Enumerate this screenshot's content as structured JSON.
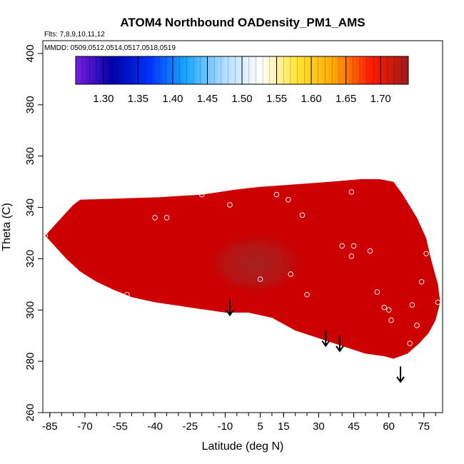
{
  "chart_data": {
    "type": "heatmap",
    "title": "ATOM4 Northbound OADensity_PM1_AMS",
    "flights_note": "Flts: 7,8,9,10,11,12",
    "dates_note": "MMDD: 0509,0512,0514,0517,0518,0519",
    "xlabel": "Latitude (deg N)",
    "ylabel": "Theta (C)",
    "xlim": [
      -88,
      83
    ],
    "ylim": [
      260,
      405
    ],
    "x_ticks": [
      "-85",
      "-70",
      "-55",
      "-40",
      "-25",
      "-10",
      "5",
      "15",
      "30",
      "45",
      "60",
      "75"
    ],
    "x_tick_values": [
      -85,
      -70,
      -55,
      -40,
      -25,
      -10,
      5,
      15,
      30,
      45,
      60,
      75
    ],
    "y_ticks": [
      "260",
      "280",
      "300",
      "320",
      "340",
      "360",
      "380",
      "400"
    ],
    "y_tick_values": [
      260,
      280,
      300,
      320,
      340,
      360,
      380,
      400
    ],
    "colorbar": {
      "min": 1.26,
      "max": 1.74,
      "tick_labels": [
        "1.30",
        "1.35",
        "1.40",
        "1.45",
        "1.50",
        "1.55",
        "1.60",
        "1.65",
        "1.70"
      ],
      "tick_values": [
        1.3,
        1.35,
        1.4,
        1.45,
        1.5,
        1.55,
        1.6,
        1.65,
        1.7
      ],
      "colors": [
        "#7a1fe0",
        "#0000aa",
        "#0033ff",
        "#1aa8ff",
        "#aedcff",
        "#ffffff",
        "#ffe433",
        "#ffa600",
        "#ff1a00",
        "#a01a1a"
      ]
    },
    "field": {
      "fill_color": "#cc0000",
      "core_color": "#a82020",
      "envelope_upper": [
        [
          -87,
          329
        ],
        [
          -82,
          334
        ],
        [
          -78,
          338
        ],
        [
          -75,
          341
        ],
        [
          -72,
          343
        ],
        [
          -38,
          344
        ],
        [
          -20,
          345
        ],
        [
          -5,
          347
        ],
        [
          5,
          348
        ],
        [
          20,
          349
        ],
        [
          35,
          350
        ],
        [
          48,
          351
        ],
        [
          56,
          351
        ],
        [
          62,
          350
        ],
        [
          66,
          345
        ],
        [
          72,
          336
        ],
        [
          76,
          328
        ],
        [
          78,
          320
        ],
        [
          81,
          310
        ],
        [
          82,
          303
        ],
        [
          80,
          296
        ],
        [
          77,
          291
        ],
        [
          73,
          287
        ],
        [
          68,
          283
        ],
        [
          62,
          281
        ]
      ],
      "envelope_lower": [
        [
          -87,
          329
        ],
        [
          -83,
          325
        ],
        [
          -78,
          320
        ],
        [
          -72,
          315
        ],
        [
          -65,
          311
        ],
        [
          -58,
          308
        ],
        [
          -50,
          305
        ],
        [
          -40,
          303
        ],
        [
          -25,
          301
        ],
        [
          -10,
          299
        ],
        [
          0,
          299
        ],
        [
          10,
          297
        ],
        [
          20,
          292
        ],
        [
          30,
          289
        ],
        [
          40,
          286
        ],
        [
          50,
          283
        ],
        [
          58,
          282
        ],
        [
          62,
          281
        ]
      ],
      "core_center": [
        3,
        318
      ],
      "core_radius": [
        22,
        13
      ]
    },
    "sample_points": [
      {
        "x": -75,
        "y": 343
      },
      {
        "x": -87,
        "y": 329
      },
      {
        "x": -40,
        "y": 336
      },
      {
        "x": -35,
        "y": 336
      },
      {
        "x": -20,
        "y": 345
      },
      {
        "x": -8,
        "y": 341
      },
      {
        "x": 12,
        "y": 345
      },
      {
        "x": 17,
        "y": 343
      },
      {
        "x": 23,
        "y": 337
      },
      {
        "x": 44,
        "y": 346
      },
      {
        "x": 40,
        "y": 325
      },
      {
        "x": 44,
        "y": 321
      },
      {
        "x": 45,
        "y": 325
      },
      {
        "x": 52,
        "y": 323
      },
      {
        "x": 5,
        "y": 312
      },
      {
        "x": 18,
        "y": 314
      },
      {
        "x": 25,
        "y": 306
      },
      {
        "x": -52,
        "y": 306
      },
      {
        "x": 55,
        "y": 307
      },
      {
        "x": 58,
        "y": 301
      },
      {
        "x": 60,
        "y": 300
      },
      {
        "x": 61,
        "y": 296
      },
      {
        "x": 70,
        "y": 302
      },
      {
        "x": 74,
        "y": 311
      },
      {
        "x": 76,
        "y": 322
      },
      {
        "x": 81,
        "y": 303
      },
      {
        "x": 9,
        "y": 294
      },
      {
        "x": 14,
        "y": 293
      },
      {
        "x": 56,
        "y": 281
      },
      {
        "x": 69,
        "y": 287
      },
      {
        "x": 72,
        "y": 294
      }
    ],
    "arrows": [
      {
        "x": -8,
        "y_top": 304,
        "y_tip": 298
      },
      {
        "x": 33,
        "y_top": 292,
        "y_tip": 286
      },
      {
        "x": 39,
        "y_top": 290,
        "y_tip": 284
      },
      {
        "x": 65,
        "y_top": 278,
        "y_tip": 272
      }
    ]
  }
}
